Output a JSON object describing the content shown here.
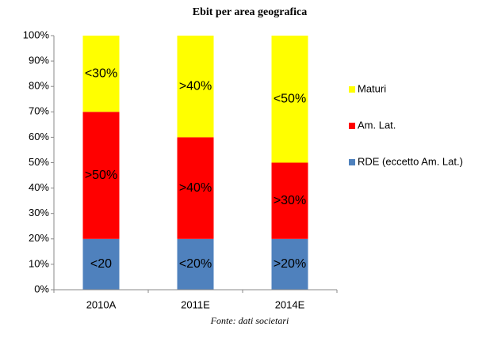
{
  "chart_data": {
    "type": "stacked_bar",
    "title": "Ebit per area geografica",
    "categories": [
      "2010A",
      "2011E",
      "2014E"
    ],
    "series": [
      {
        "name": "RDE (eccetto Am. Lat.)",
        "color": "#4f81bd",
        "values": [
          20,
          20,
          20
        ],
        "value_labels": [
          "<20",
          "<20%",
          ">20%"
        ]
      },
      {
        "name": "Am. Lat.",
        "color": "#ff0000",
        "values": [
          50,
          40,
          30
        ],
        "value_labels": [
          ">50%",
          ">40%",
          ">30%"
        ]
      },
      {
        "name": "Maturi",
        "color": "#ffff00",
        "values": [
          30,
          40,
          50
        ],
        "value_labels": [
          "<30%",
          ">40%",
          "<50%"
        ]
      }
    ],
    "ylim": [
      0,
      100
    ],
    "yticks": [
      {
        "value": 0,
        "label": "0%"
      },
      {
        "value": 10,
        "label": "10%"
      },
      {
        "value": 20,
        "label": "20%"
      },
      {
        "value": 30,
        "label": "30%"
      },
      {
        "value": 40,
        "label": "40%"
      },
      {
        "value": 50,
        "label": "50%"
      },
      {
        "value": 60,
        "label": "60%"
      },
      {
        "value": 70,
        "label": "70%"
      },
      {
        "value": 80,
        "label": "80%"
      },
      {
        "value": 90,
        "label": "90%"
      },
      {
        "value": 100,
        "label": "100%"
      }
    ],
    "grid": false,
    "legend": "right",
    "source": "Fonte: dati societari"
  }
}
